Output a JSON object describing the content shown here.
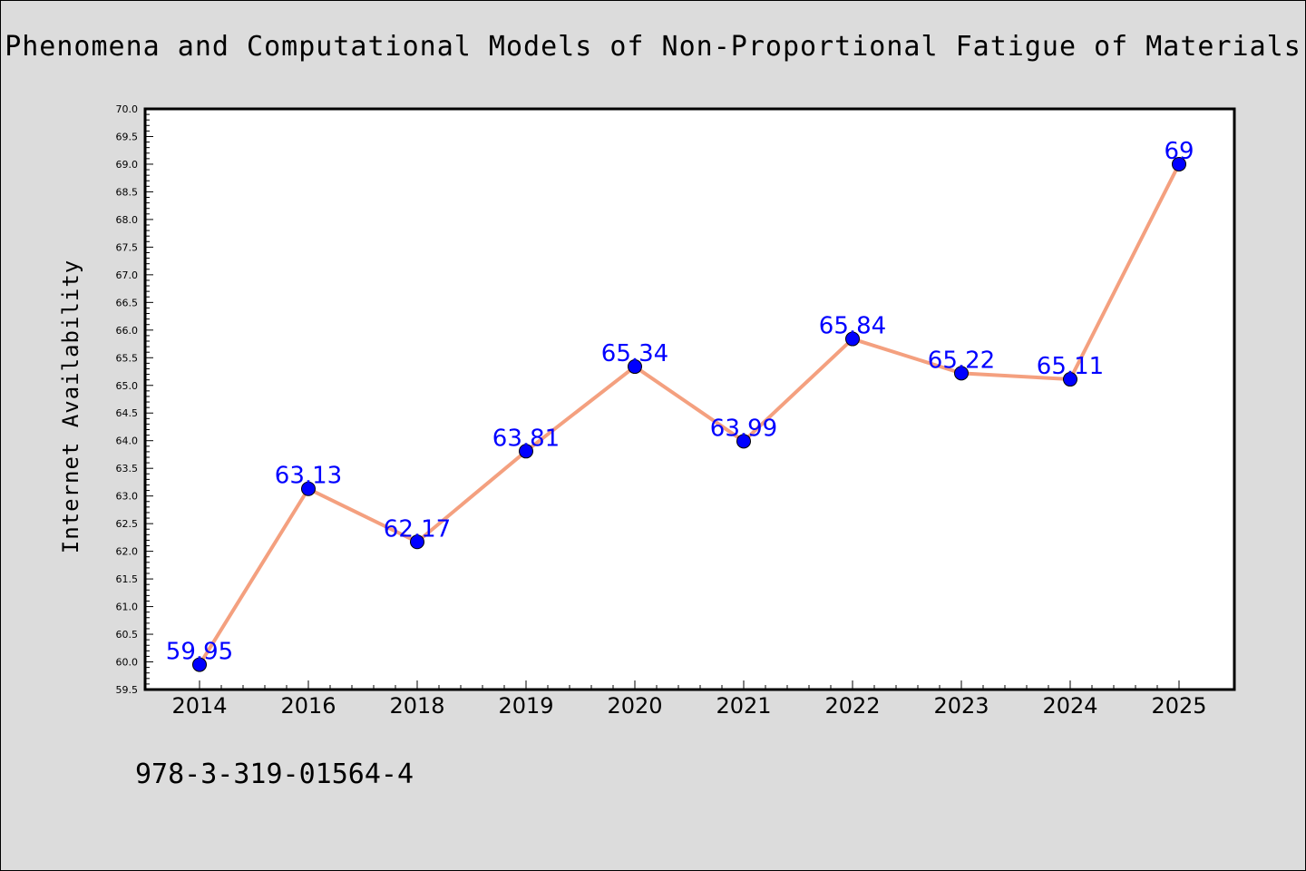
{
  "header": {
    "title": "Phenomena and Computational Models of Non-Proportional Fatigue of Materials"
  },
  "footer": {
    "isbn": "978-3-319-01564-4"
  },
  "chart_data": {
    "type": "line",
    "title": "Phenomena and Computational Models of Non-Proportional Fatigue of Materials",
    "xlabel": "",
    "ylabel": "Internet Availability",
    "categories": [
      "2014",
      "2016",
      "2018",
      "2019",
      "2020",
      "2021",
      "2022",
      "2023",
      "2024",
      "2025"
    ],
    "series": [
      {
        "values": [
          59.95,
          63.13,
          62.17,
          63.81,
          65.34,
          63.99,
          65.84,
          65.22,
          65.11,
          69
        ],
        "data_labels": [
          "59.95",
          "63.13",
          "62.17",
          "63.81",
          "65.34",
          "63.99",
          "65.84",
          "65.22",
          "65.11",
          "69"
        ],
        "line_color": "#f4a07f",
        "marker_color": "#0000ff"
      }
    ],
    "ylim": [
      59.5,
      70.0
    ],
    "yticks": [
      "59.5",
      "60.0",
      "60.5",
      "61.0",
      "61.5",
      "62.0",
      "62.5",
      "63.0",
      "63.5",
      "64.0",
      "64.5",
      "65.0",
      "65.5",
      "66.0",
      "66.5",
      "67.0",
      "67.5",
      "68.0",
      "68.5",
      "69.0",
      "69.5",
      "70.0"
    ],
    "grid": false,
    "legend": "none",
    "colors": {
      "background": "#dcdcdc",
      "plot_background": "#ffffff",
      "data_label": "#0000ff"
    }
  }
}
